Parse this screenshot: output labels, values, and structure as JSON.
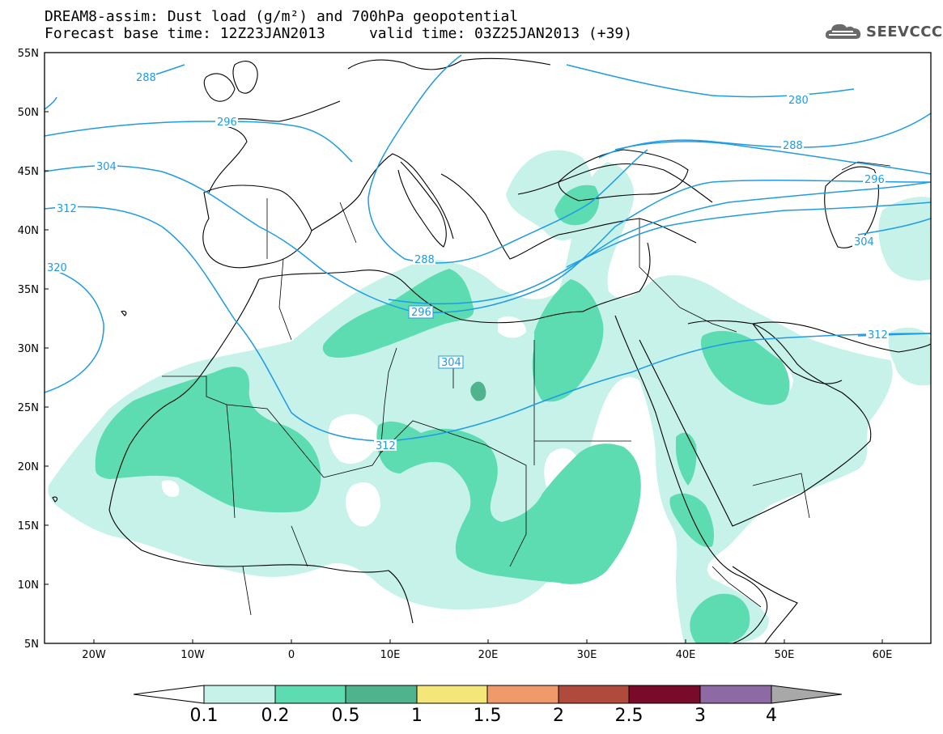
{
  "header": {
    "title_line1": "DREAM8-assim: Dust load (g/m²) and 700hPa geopotential",
    "title_line2": "Forecast base time: 12Z23JAN2013     valid time: 03Z25JAN2013 (+39)"
  },
  "logo": {
    "text": "SEEVCCC",
    "icon": "cloud-logo-icon"
  },
  "map": {
    "lat_labels": [
      "55N",
      "50N",
      "45N",
      "40N",
      "35N",
      "30N",
      "25N",
      "20N",
      "15N",
      "10N",
      "5N"
    ],
    "lon_labels": [
      "20W",
      "10W",
      "0",
      "10E",
      "20E",
      "30E",
      "40E",
      "50E",
      "60E"
    ],
    "contour_labels": [
      {
        "text": "288",
        "id": "c288a"
      },
      {
        "text": "296",
        "id": "c296a"
      },
      {
        "text": "304",
        "id": "c304a"
      },
      {
        "text": "312",
        "id": "c312a"
      },
      {
        "text": "320",
        "id": "c320a"
      },
      {
        "text": "288",
        "id": "c288b"
      },
      {
        "text": "296",
        "id": "c296b"
      },
      {
        "text": "304",
        "id": "c304b"
      },
      {
        "text": "312",
        "id": "c312b"
      },
      {
        "text": "280",
        "id": "c280"
      },
      {
        "text": "288",
        "id": "c288c"
      },
      {
        "text": "296",
        "id": "c296c"
      },
      {
        "text": "304",
        "id": "c304c"
      },
      {
        "text": "312",
        "id": "c312c"
      }
    ],
    "colors": {
      "contour": "#1e9be6",
      "dust_01": "#c6f2ea",
      "dust_02": "#5cdcb0",
      "dust_05": "#4fb38d"
    }
  },
  "colorbar": {
    "labels": [
      "0.1",
      "0.2",
      "0.5",
      "1",
      "1.5",
      "2",
      "2.5",
      "3",
      "4"
    ],
    "colors": [
      "#c6f2ea",
      "#5cdcb0",
      "#4fb38d",
      "#f5e67a",
      "#f0996a",
      "#b04a3c",
      "#7a0a2a",
      "#8e6aa4"
    ]
  }
}
